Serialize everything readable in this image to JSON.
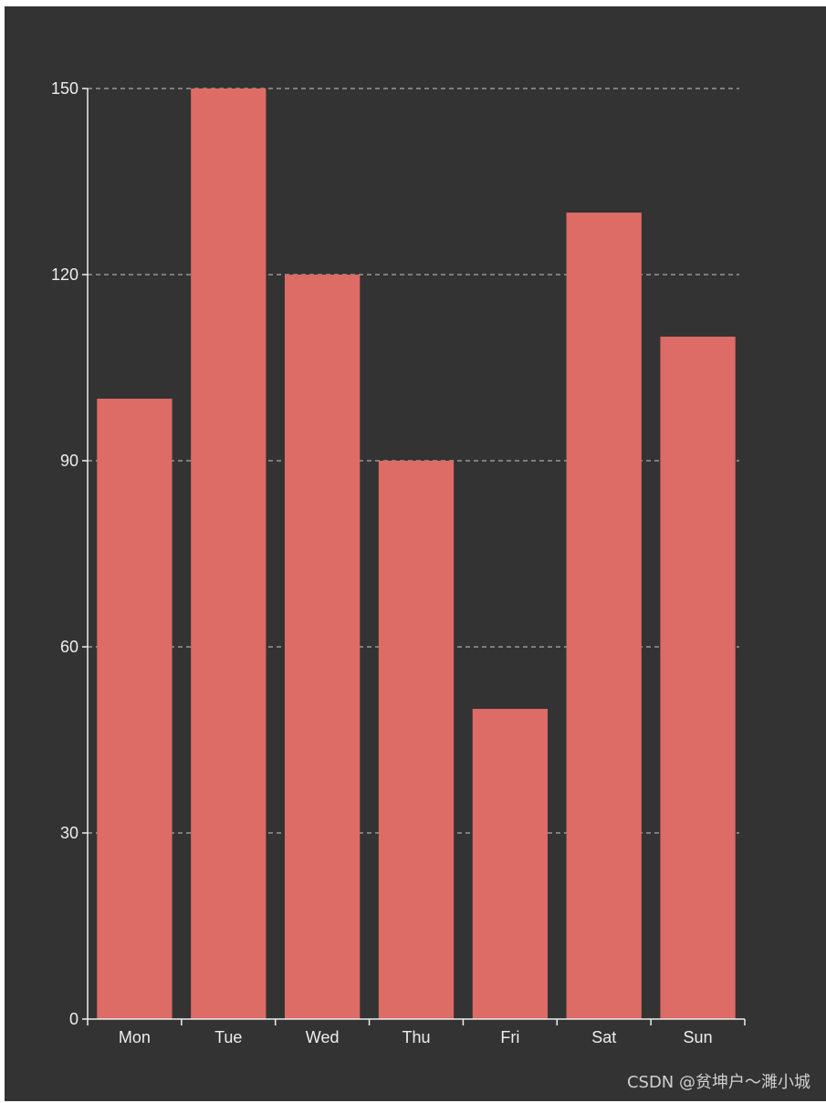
{
  "chart_data": {
    "type": "bar",
    "categories": [
      "Mon",
      "Tue",
      "Wed",
      "Thu",
      "Fri",
      "Sat",
      "Sun"
    ],
    "values": [
      100,
      150,
      120,
      90,
      50,
      130,
      110
    ],
    "title": "",
    "xlabel": "",
    "ylabel": "",
    "ylim": [
      0,
      150
    ],
    "yticks": [
      0,
      30,
      60,
      90,
      120,
      150
    ],
    "grid": "horizontal dashed",
    "bar_color": "#dd6b66",
    "background_color": "#333333",
    "axis_color": "#eeeeee"
  },
  "watermark": "CSDN @贫坤户～濉小城"
}
